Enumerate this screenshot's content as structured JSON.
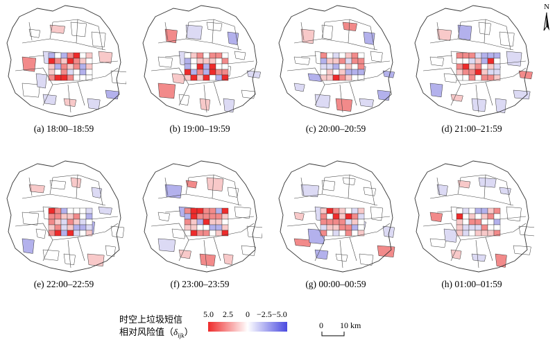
{
  "panels": [
    {
      "label": "(a) 18:00–18:59"
    },
    {
      "label": "(b) 19:00–19:59"
    },
    {
      "label": "(c) 20:00–20:59"
    },
    {
      "label": "(d) 21:00–21:59"
    },
    {
      "label": "(e) 22:00–22:59"
    },
    {
      "label": "(f) 23:00–23:59"
    },
    {
      "label": "(g) 00:00–00:59"
    },
    {
      "label": "(h) 01:00–01:59"
    }
  ],
  "north_arrow": {
    "label": "N"
  },
  "legend": {
    "title_line1": "时空上垃圾短信",
    "title_line2_prefix": "相对风险值（",
    "title_symbol": "δ",
    "title_subscript": "ijk",
    "title_line2_suffix": "）",
    "ticks": [
      "5.0",
      "2.5",
      "0",
      "−2.5",
      "−5.0"
    ],
    "colors": {
      "high": "#ee2b2b",
      "mid": "#ffffff",
      "low": "#4a4ae0"
    }
  },
  "scale_bar": {
    "zero": "0",
    "distance": "10 km"
  }
}
